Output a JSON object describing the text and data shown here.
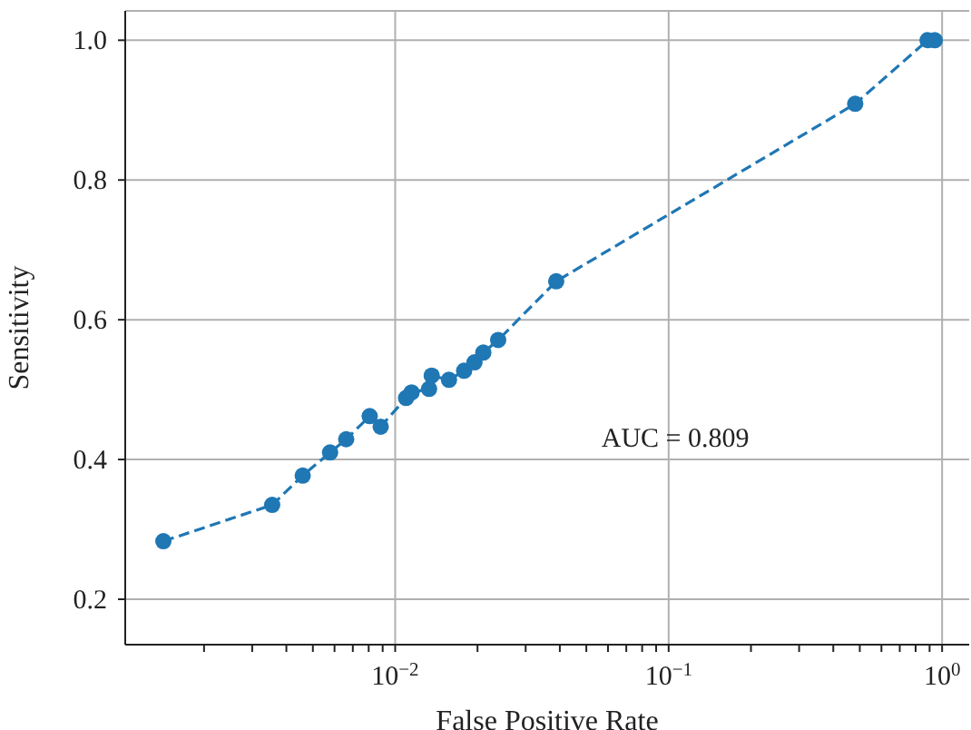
{
  "chart_data": {
    "type": "line",
    "xlabel": "False Positive Rate",
    "ylabel": "Sensitivity",
    "log": "x",
    "grid": true,
    "marker": "circle",
    "line_style": "dashed",
    "xlim": [
      0.00103,
      1.256
    ],
    "ylim": [
      0.135,
      1.042
    ],
    "xticks": [
      {
        "value": 0.002,
        "label": null
      },
      {
        "value": 0.003,
        "label": null
      },
      {
        "value": 0.004,
        "label": null
      },
      {
        "value": 0.005,
        "label": null
      },
      {
        "value": 0.006,
        "label": null
      },
      {
        "value": 0.007,
        "label": null
      },
      {
        "value": 0.008,
        "label": null
      },
      {
        "value": 0.009,
        "label": null
      },
      {
        "value": 0.01,
        "label": "10$^{−2}$"
      },
      {
        "value": 0.02,
        "label": null
      },
      {
        "value": 0.03,
        "label": null
      },
      {
        "value": 0.04,
        "label": null
      },
      {
        "value": 0.05,
        "label": null
      },
      {
        "value": 0.06,
        "label": null
      },
      {
        "value": 0.07,
        "label": null
      },
      {
        "value": 0.08,
        "label": null
      },
      {
        "value": 0.09,
        "label": null
      },
      {
        "value": 0.1,
        "label": "10$^{−1}$"
      },
      {
        "value": 0.2,
        "label": null
      },
      {
        "value": 0.3,
        "label": null
      },
      {
        "value": 0.4,
        "label": null
      },
      {
        "value": 0.5,
        "label": null
      },
      {
        "value": 0.6,
        "label": null
      },
      {
        "value": 0.7,
        "label": null
      },
      {
        "value": 0.8,
        "label": null
      },
      {
        "value": 0.9,
        "label": null
      },
      {
        "value": 1,
        "label": "10$^{0}$"
      }
    ],
    "yticks": [
      {
        "value": 0.2,
        "label": "0.2"
      },
      {
        "value": 0.4,
        "label": "0.4"
      },
      {
        "value": 0.6,
        "label": "0.6"
      },
      {
        "value": 0.8,
        "label": "0.8"
      },
      {
        "value": 1.0,
        "label": "1.0"
      }
    ],
    "annotations": [
      "AUC = 0.809"
    ],
    "series": [
      {
        "color": "#1f77b4",
        "x": [
          0.00142,
          0.00355,
          0.00459,
          0.00578,
          0.00662,
          0.00807,
          0.00885,
          0.01096,
          0.01148,
          0.0133,
          0.0136,
          0.01573,
          0.01787,
          0.0195,
          0.021,
          0.0238,
          0.0388,
          0.481,
          0.885,
          0.94
        ],
        "values": [
          0.283,
          0.335,
          0.377,
          0.41,
          0.429,
          0.462,
          0.447,
          0.488,
          0.496,
          0.501,
          0.52,
          0.514,
          0.527,
          0.539,
          0.553,
          0.571,
          0.655,
          0.909,
          1.0,
          1.0
        ]
      }
    ]
  }
}
